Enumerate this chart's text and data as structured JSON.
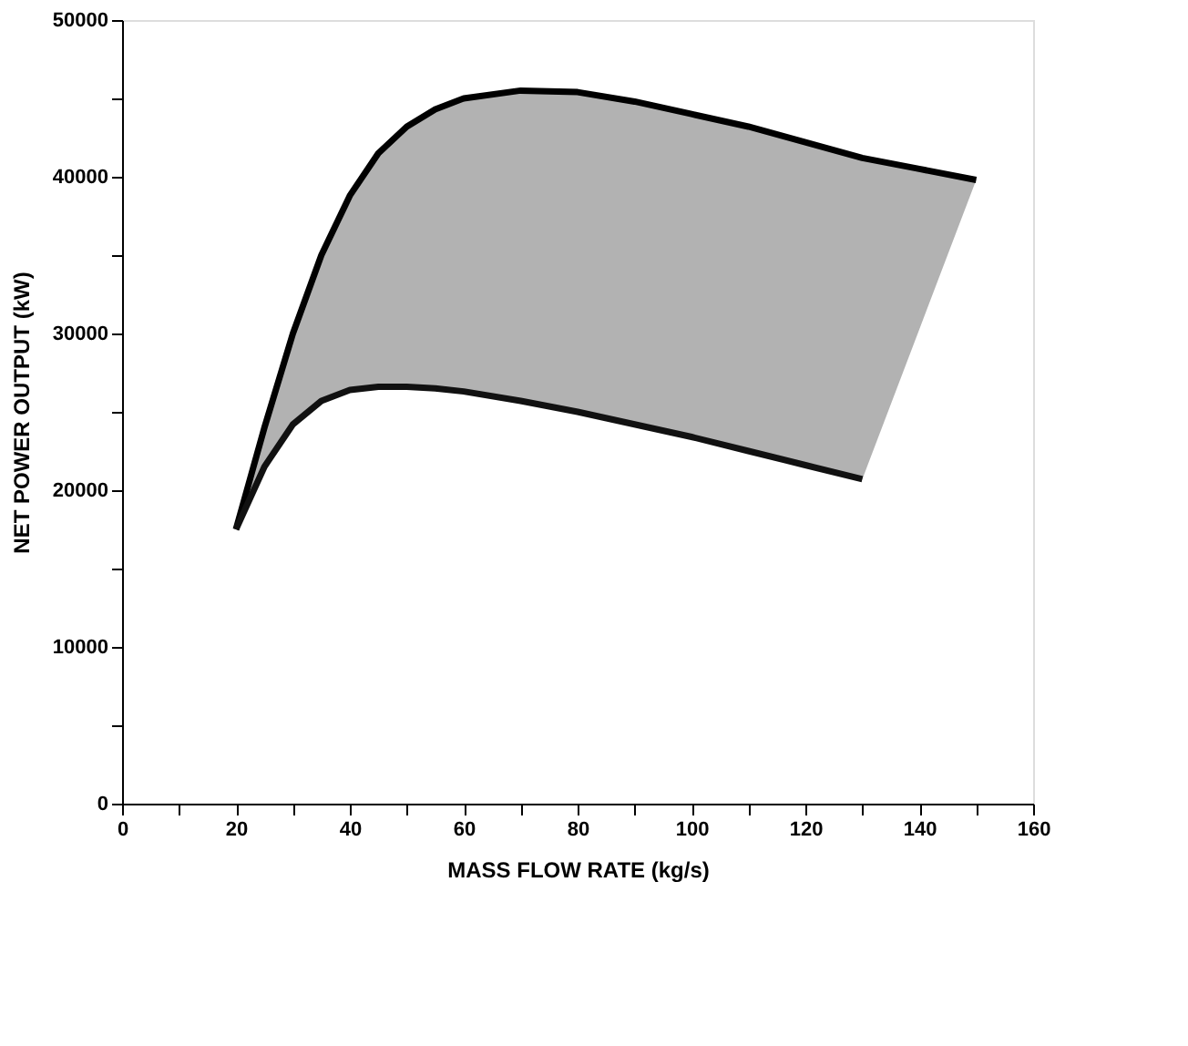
{
  "chart_data": {
    "type": "line",
    "xlabel": "MASS FLOW RATE (kg/s)",
    "ylabel": "NET POWER OUTPUT (kW)",
    "xlim": [
      0,
      160
    ],
    "ylim": [
      0,
      50000
    ],
    "xticks": [
      0,
      {
        "value": 10,
        "label": null
      },
      20,
      {
        "value": 30,
        "label": null
      },
      40,
      {
        "value": 50,
        "label": null
      },
      60,
      {
        "value": 70,
        "label": null
      },
      80,
      {
        "value": 90,
        "label": null
      },
      100,
      {
        "value": 110,
        "label": null
      },
      120,
      {
        "value": 130,
        "label": null
      },
      140,
      {
        "value": 150,
        "label": null
      },
      160
    ],
    "yticks": [
      0,
      {
        "value": 5000,
        "label": null
      },
      10000,
      {
        "value": 15000,
        "label": null
      },
      20000,
      {
        "value": 25000,
        "label": null
      },
      30000,
      {
        "value": 35000,
        "label": null
      },
      40000,
      {
        "value": 45000,
        "label": null
      },
      50000
    ],
    "grid": false,
    "marker": "none",
    "line_style": "solid",
    "series": [
      {
        "color": "#000000",
        "x": [
          20,
          25,
          30,
          35,
          40,
          45,
          50,
          55,
          60,
          70,
          80,
          90,
          100,
          110,
          120,
          130,
          140,
          150
        ],
        "values": [
          17500,
          24000,
          30000,
          35000,
          38800,
          41500,
          43200,
          44300,
          45000,
          45500,
          45400,
          44800,
          44000,
          43200,
          42200,
          41200,
          40500,
          39800
        ],
        "lower": [
          17500,
          21500,
          24200,
          25700,
          26400,
          26600,
          26600,
          26500,
          26300,
          25700,
          25000,
          24200,
          23400,
          22500,
          21600,
          20700,
          30250,
          39800
        ],
        "upper": [
          17500,
          24000,
          30000,
          35000,
          38800,
          41500,
          43200,
          44300,
          45000,
          45500,
          45400,
          44800,
          44000,
          43200,
          42200,
          41200,
          40500,
          39800
        ]
      },
      {
        "color": "#111111",
        "x": [
          20,
          25,
          30,
          35,
          40,
          45,
          50,
          55,
          60,
          70,
          80,
          90,
          100,
          110,
          120,
          130
        ],
        "values": [
          17500,
          21500,
          24200,
          25700,
          26400,
          26600,
          26600,
          26500,
          26300,
          25700,
          25000,
          24200,
          23400,
          22500,
          21600,
          20700
        ]
      }
    ]
  }
}
